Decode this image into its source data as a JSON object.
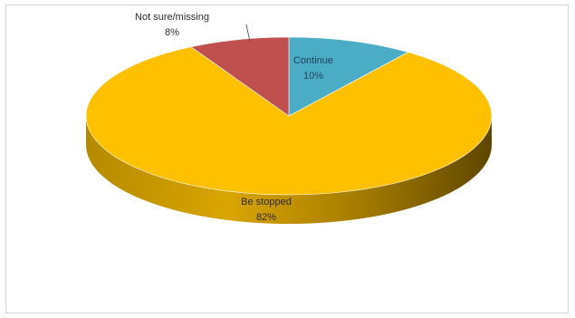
{
  "chart_data": {
    "type": "pie",
    "style": "3d",
    "slices": [
      {
        "label": "Continue",
        "value": 10,
        "display": "10%",
        "color": "#4bacc6"
      },
      {
        "label": "Be stopped",
        "value": 82,
        "display": "82%",
        "color": "#ffc000"
      },
      {
        "label": "Not sure/missing",
        "value": 8,
        "display": "8%",
        "color": "#c0504d"
      }
    ],
    "legend": "none"
  }
}
